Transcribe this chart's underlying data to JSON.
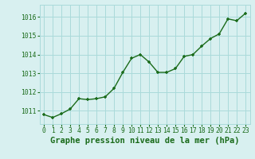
{
  "x": [
    0,
    1,
    2,
    3,
    4,
    5,
    6,
    7,
    8,
    9,
    10,
    11,
    12,
    13,
    14,
    15,
    16,
    17,
    18,
    19,
    20,
    21,
    22,
    23
  ],
  "y": [
    1010.8,
    1010.65,
    1010.85,
    1011.1,
    1011.65,
    1011.6,
    1011.65,
    1011.75,
    1012.2,
    1013.05,
    1013.8,
    1014.0,
    1013.6,
    1013.05,
    1013.05,
    1013.25,
    1013.9,
    1014.0,
    1014.45,
    1014.85,
    1015.1,
    1015.9,
    1015.8,
    1016.2
  ],
  "line_color": "#1a6b1a",
  "marker_color": "#1a6b1a",
  "bg_color": "#d8f0f0",
  "grid_color": "#aadada",
  "xlabel": "Graphe pression niveau de la mer (hPa)",
  "xlabel_color": "#1a6b1a",
  "tick_color": "#1a6b1a",
  "ylim_min": 1010.3,
  "ylim_max": 1016.65,
  "yticks": [
    1011,
    1012,
    1013,
    1014,
    1015,
    1016
  ],
  "xticks": [
    0,
    1,
    2,
    3,
    4,
    5,
    6,
    7,
    8,
    9,
    10,
    11,
    12,
    13,
    14,
    15,
    16,
    17,
    18,
    19,
    20,
    21,
    22,
    23
  ],
  "marker_size": 3.5,
  "line_width": 1.0,
  "font_size_xlabel": 7.5,
  "font_size_ticks": 5.8
}
